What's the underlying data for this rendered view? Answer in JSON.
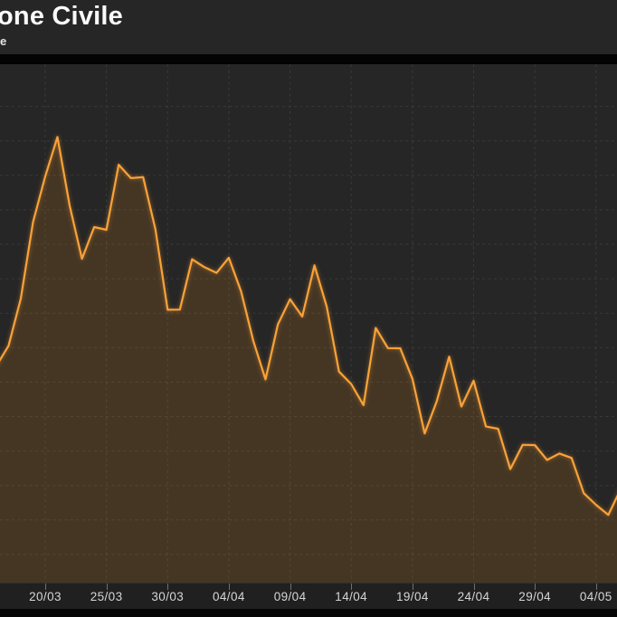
{
  "header": {
    "title": "one Civile",
    "subtitle": "e"
  },
  "colors": {
    "background": "#262626",
    "header_divider": "#030303",
    "line": "#f9a23a",
    "area_fill": "#f7941e",
    "area_fill_opacity": 0.15,
    "grid": "#4a4a4a",
    "axis_strip_bg": "#202020",
    "axis_label": "#d6d6d6",
    "tick_mark": "#6f6f6f",
    "bottom_bar": "#060606",
    "title_text": "#fafafa"
  },
  "chart_data": {
    "type": "area",
    "title": "one Civile",
    "xlabel": "",
    "ylabel": "",
    "legend": "none",
    "grid": "dotted, both axes",
    "ylim": [
      0,
      7500
    ],
    "y_gridline_step": 500,
    "x": [
      "16/03",
      "17/03",
      "18/03",
      "19/03",
      "20/03",
      "21/03",
      "22/03",
      "23/03",
      "24/03",
      "25/03",
      "26/03",
      "27/03",
      "28/03",
      "29/03",
      "30/03",
      "31/03",
      "01/04",
      "02/04",
      "03/04",
      "04/04",
      "05/04",
      "06/04",
      "07/04",
      "08/04",
      "09/04",
      "10/04",
      "11/04",
      "12/04",
      "13/04",
      "14/04",
      "15/04",
      "16/04",
      "17/04",
      "18/04",
      "19/04",
      "20/04",
      "21/04",
      "22/04",
      "23/04",
      "24/04",
      "25/04",
      "26/04",
      "27/04",
      "28/04",
      "29/04",
      "30/04",
      "01/05",
      "02/05",
      "03/05",
      "04/05",
      "05/05",
      "06/05"
    ],
    "values": [
      3233,
      3526,
      4207,
      5322,
      5986,
      6557,
      5560,
      4789,
      5249,
      5210,
      6153,
      5959,
      5974,
      5217,
      4050,
      4053,
      4782,
      4668,
      4585,
      4805,
      4316,
      3599,
      3039,
      3836,
      4204,
      3951,
      4694,
      4092,
      3153,
      2972,
      2667,
      3786,
      3493,
      3491,
      3047,
      2256,
      2729,
      3370,
      2646,
      3021,
      2357,
      2324,
      1739,
      2091,
      2086,
      1872,
      1965,
      1900,
      1389,
      1221,
      1075,
      1444
    ],
    "x_tick_labels": [
      "20/03",
      "25/03",
      "30/03",
      "04/04",
      "09/04",
      "14/04",
      "19/04",
      "24/04",
      "29/04",
      "04/05"
    ]
  }
}
